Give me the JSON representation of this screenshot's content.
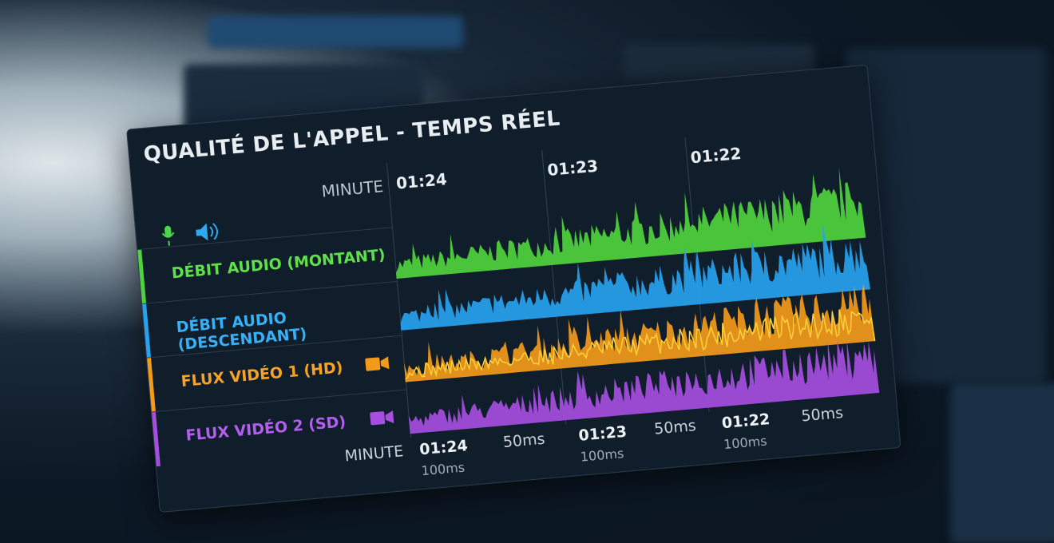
{
  "header": {
    "title": "QUALITÉ DE L'APPEL - TEMPS RÉEL",
    "minute_label": "MINUTE",
    "times": [
      "01:24",
      "01:23",
      "01:22"
    ]
  },
  "rows": [
    "DÉBIT AUDIO (MONTANT)",
    "DÉBIT AUDIO (DESCENDANT)",
    "FLUX VIDÉO 1 (HD)",
    "FLUX VIDÉO 2 (SD)"
  ],
  "footer": {
    "minute_label": "MINUTE",
    "segments": [
      {
        "time": "01:24",
        "scales": [
          "100ms",
          "50ms"
        ]
      },
      {
        "time": "01:23",
        "scales": [
          "100ms",
          "50ms"
        ]
      },
      {
        "time": "01:22",
        "scales": [
          "100ms",
          "50ms"
        ]
      }
    ]
  }
}
